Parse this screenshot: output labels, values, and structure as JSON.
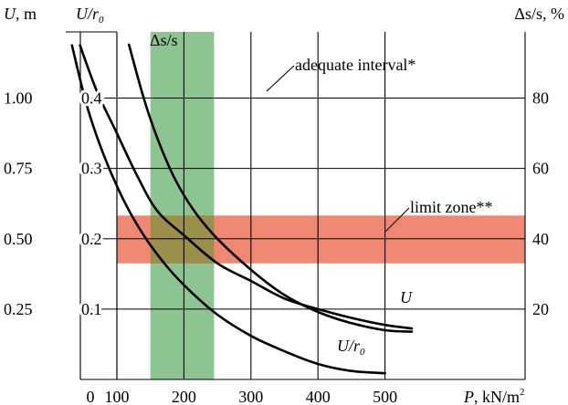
{
  "chart_data": {
    "type": "line",
    "x": {
      "label_var": "P",
      "label_unit": ", kN/m",
      "label_exp": "2",
      "ticks": [
        "0",
        "100",
        "200",
        "300",
        "400",
        "500"
      ],
      "range": [
        0,
        500
      ]
    },
    "y_left_outer": {
      "label_var": "U",
      "label_unit": ", m",
      "ticks": [
        "0.25",
        "0.50",
        "0.75",
        "1.00"
      ],
      "tick_values": [
        0.25,
        0.5,
        0.75,
        1.0
      ],
      "range": [
        0,
        1.25
      ]
    },
    "y_left_inner": {
      "label_var": "U/r",
      "label_sub": "0",
      "ticks": [
        "0.1",
        "0.2",
        "0.3",
        "0.4"
      ],
      "tick_values": [
        0.1,
        0.2,
        0.3,
        0.4
      ],
      "range": [
        0,
        0.5
      ]
    },
    "y_right": {
      "label_text": "Δs/s, %",
      "ticks": [
        "20",
        "40",
        "60",
        "80"
      ],
      "tick_values": [
        20,
        40,
        60,
        80
      ],
      "range": [
        0,
        100
      ]
    },
    "bands": [
      {
        "orientation": "vertical",
        "axis": "x",
        "from": 150,
        "to": 245,
        "color": "#8dc592",
        "label": "adequate interval*"
      },
      {
        "orientation": "horizontal",
        "axis": "y_left_inner",
        "from": 0.165,
        "to": 0.233,
        "color": "#ee8872",
        "label": "limit zone**"
      }
    ],
    "series": [
      {
        "label": "Δs/s",
        "axis": "y_right",
        "x": [
          45,
          70,
          100,
          130,
          160,
          200,
          250,
          300,
          350,
          400,
          450,
          500,
          540
        ],
        "y": [
          95,
          82,
          70,
          58,
          48,
          41,
          33,
          28,
          23,
          20,
          17.5,
          15.5,
          14.5
        ]
      },
      {
        "label": "U",
        "axis": "y_left_outer",
        "x": [
          118,
          140,
          160,
          185,
          215,
          250,
          300,
          350,
          400,
          450,
          500,
          540
        ],
        "y": [
          1.19,
          1.0,
          0.86,
          0.72,
          0.6,
          0.5,
          0.39,
          0.3,
          0.24,
          0.2,
          0.175,
          0.17
        ]
      },
      {
        "label": "U/r",
        "label_sub": "0",
        "axis": "y_left_inner",
        "x": [
          33,
          55,
          80,
          110,
          140,
          175,
          210,
          250,
          300,
          350,
          400,
          450,
          500
        ],
        "y": [
          0.475,
          0.39,
          0.32,
          0.255,
          0.205,
          0.16,
          0.125,
          0.092,
          0.062,
          0.04,
          0.022,
          0.012,
          0.009
        ]
      }
    ]
  }
}
